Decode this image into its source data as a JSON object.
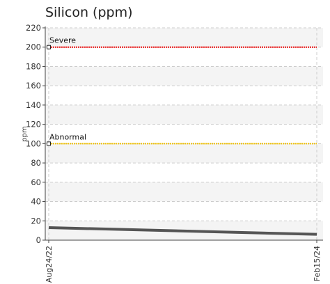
{
  "chart_data": {
    "type": "line",
    "title": "Silicon (ppm)",
    "xlabel": "",
    "ylabel": "ppm",
    "ylim": [
      0,
      220
    ],
    "yticks": [
      0,
      20,
      40,
      60,
      80,
      100,
      120,
      140,
      160,
      180,
      200,
      220
    ],
    "categories": [
      "Aug24/22",
      "Feb15/24"
    ],
    "grid": true,
    "series": [
      {
        "values": [
          13,
          6
        ],
        "color": "#555555"
      }
    ],
    "thresholds": [
      {
        "label": "Severe",
        "value": 200,
        "color": "#e81010"
      },
      {
        "label": "Abnormal",
        "value": 100,
        "color": "#f0c000"
      }
    ]
  }
}
